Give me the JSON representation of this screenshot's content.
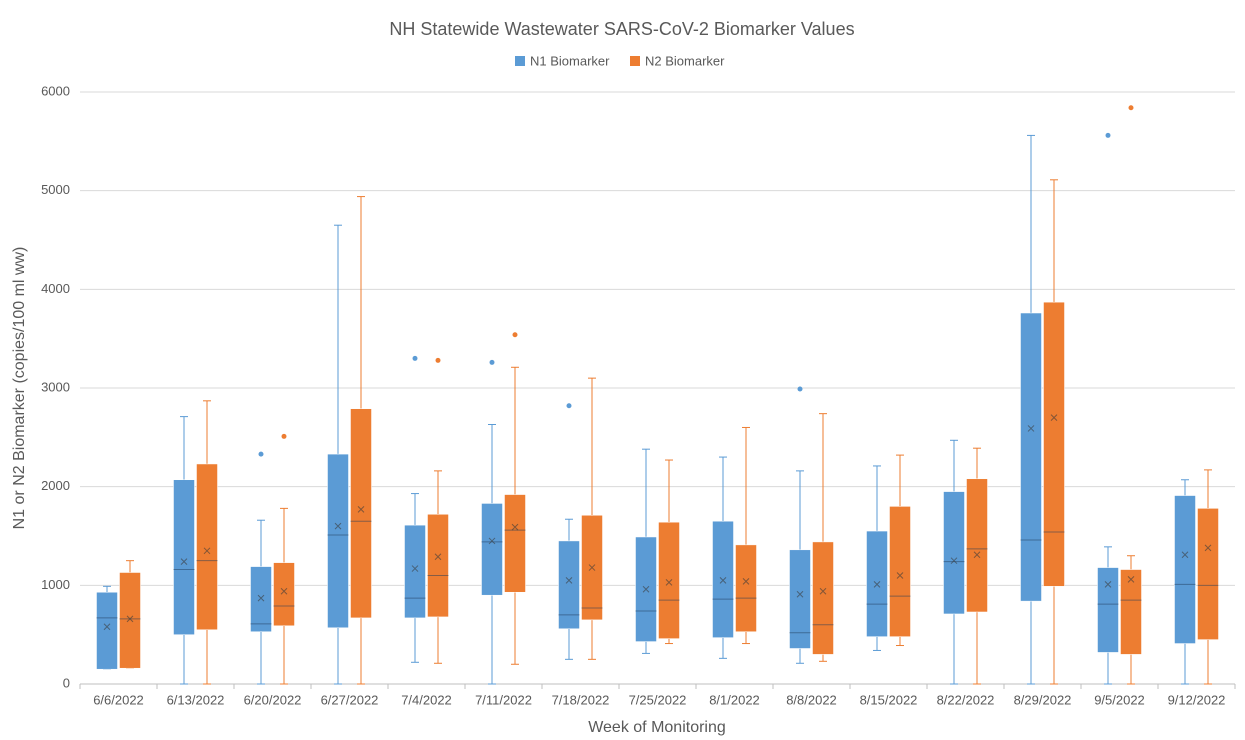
{
  "chart_data": {
    "type": "box",
    "title": "NH Statewide Wastewater SARS-CoV-2 Biomarker Values",
    "x_label": "Week of Monitoring",
    "y_label": "N1 or N2 Biomarker (copies/100 ml ww)",
    "categories": [
      "6/6/2022",
      "6/13/2022",
      "6/20/2022",
      "6/27/2022",
      "7/4/2022",
      "7/11/2022",
      "7/18/2022",
      "7/25/2022",
      "8/1/2022",
      "8/8/2022",
      "8/15/2022",
      "8/22/2022",
      "8/29/2022",
      "9/5/2022",
      "9/12/2022"
    ],
    "series": [
      {
        "name": "N1 Biomarker",
        "color": "#5b9bd5",
        "min": [
          150,
          0,
          0,
          0,
          220,
          0,
          250,
          310,
          260,
          210,
          340,
          0,
          0,
          0,
          0
        ],
        "q1": [
          150,
          500,
          530,
          570,
          670,
          900,
          560,
          430,
          470,
          360,
          480,
          710,
          840,
          320,
          410
        ],
        "median": [
          670,
          1160,
          610,
          1510,
          870,
          1440,
          700,
          740,
          860,
          520,
          810,
          1240,
          1460,
          810,
          1010
        ],
        "q3": [
          930,
          2070,
          1190,
          2330,
          1610,
          1830,
          1450,
          1490,
          1650,
          1360,
          1550,
          1950,
          3760,
          1180,
          1910
        ],
        "max": [
          990,
          2710,
          1660,
          4650,
          1930,
          2630,
          1670,
          2380,
          2300,
          2160,
          2210,
          2470,
          5560,
          1390,
          2070
        ],
        "mean": [
          580,
          1240,
          870,
          1600,
          1170,
          1450,
          1050,
          960,
          1050,
          910,
          1010,
          1250,
          2590,
          1010,
          1310
        ],
        "outliers": [
          [],
          [],
          [
            2330
          ],
          [],
          [
            3300
          ],
          [
            3260
          ],
          [
            2820
          ],
          [],
          [],
          [
            2990
          ],
          [],
          [],
          [],
          [
            5560
          ],
          []
        ]
      },
      {
        "name": "N2 Biomarker",
        "color": "#ed7d31",
        "min": [
          160,
          0,
          0,
          0,
          210,
          200,
          250,
          410,
          410,
          230,
          390,
          0,
          0,
          0,
          0
        ],
        "q1": [
          160,
          550,
          590,
          670,
          680,
          930,
          650,
          460,
          530,
          300,
          480,
          730,
          990,
          300,
          450
        ],
        "median": [
          660,
          1250,
          790,
          1650,
          1100,
          1560,
          770,
          850,
          870,
          600,
          890,
          1370,
          1540,
          850,
          1000
        ],
        "q3": [
          1130,
          2230,
          1230,
          2790,
          1720,
          1920,
          1710,
          1640,
          1410,
          1440,
          1800,
          2080,
          3870,
          1160,
          1780
        ],
        "max": [
          1250,
          2870,
          1780,
          4940,
          2160,
          3210,
          3100,
          2270,
          2600,
          2740,
          2320,
          2390,
          5110,
          1300,
          2170
        ],
        "mean": [
          660,
          1350,
          940,
          1770,
          1290,
          1590,
          1180,
          1030,
          1040,
          940,
          1100,
          1310,
          2700,
          1060,
          1380
        ],
        "outliers": [
          [],
          [],
          [
            2510
          ],
          [],
          [
            3280
          ],
          [
            3540
          ],
          [],
          [],
          [],
          [],
          [],
          [],
          [],
          [
            5840
          ],
          []
        ]
      }
    ],
    "ylim": [
      0,
      6000
    ],
    "yticks": [
      0,
      1000,
      2000,
      3000,
      4000,
      5000,
      6000
    ],
    "grid": true,
    "legend": "top"
  }
}
